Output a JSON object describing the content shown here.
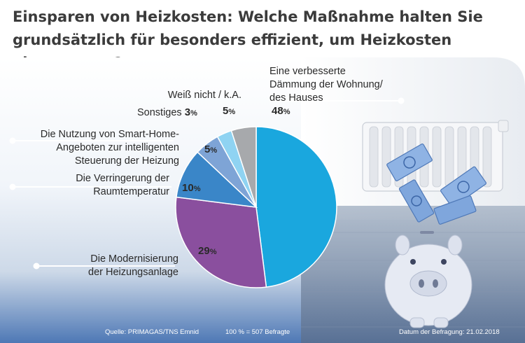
{
  "title_line1": "Einsparen von Heizkosten: Welche Maßnahme halten Sie",
  "title_line2": "grundsätzlich für besonders effizient, um Heizkosten einzusparen?",
  "labels": {
    "daemmung": [
      "Eine verbesserte",
      "Dämmung der Wohnung/",
      "des Hauses"
    ],
    "modernisierung": [
      "Die Modernisierung",
      "der Heizungsanlage"
    ],
    "raumtemperatur": [
      "Die Verringerung der",
      "Raumtemperatur"
    ],
    "smarthome": [
      "Die Nutzung von Smart-Home-",
      "Angeboten zur intelligenten",
      "Steuerung der Heizung"
    ],
    "sonstiges": "Sonstiges",
    "weissnicht": "Weiß nicht / k.A."
  },
  "pct_values": {
    "daemmung": "48",
    "modernisierung": "29",
    "raumtemperatur": "10",
    "smarthome": "5",
    "sonstiges": "3",
    "weissnicht": "5",
    "sign": "%"
  },
  "footer": {
    "source": "Quelle: PRIMAGAS/TNS Emnid",
    "base": "100 % = 507 Befragte",
    "date": "Datum der Befragung: 21.02.2018"
  },
  "colors": {
    "daemmung": "#1aa7de",
    "modernisierung": "#8a4f9e",
    "raumtemperatur": "#3a86c8",
    "smarthome": "#7ea4d6",
    "sonstiges": "#8fd3f2",
    "weissnicht": "#a7a9ac"
  },
  "chart_data": {
    "type": "pie",
    "title": "Einsparen von Heizkosten: Welche Maßnahme halten Sie grundsätzlich für besonders effizient, um Heizkosten einzusparen?",
    "categories": [
      "Eine verbesserte Dämmung der Wohnung/des Hauses",
      "Die Modernisierung der Heizungsanlage",
      "Die Verringerung der Raumtemperatur",
      "Die Nutzung von Smart-Home-Angeboten zur intelligenten Steuerung der Heizung",
      "Sonstiges",
      "Weiß nicht / k.A."
    ],
    "values": [
      48,
      29,
      10,
      5,
      3,
      5
    ],
    "unit": "%"
  }
}
